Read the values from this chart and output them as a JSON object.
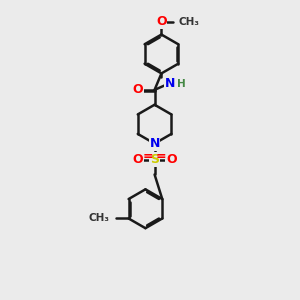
{
  "background_color": "#ebebeb",
  "bond_color": "#1a1a1a",
  "bond_width": 1.8,
  "atom_colors": {
    "O": "#ff0000",
    "N": "#0000ee",
    "S": "#cccc00",
    "C": "#1a1a1a"
  },
  "figsize": [
    3.0,
    3.0
  ],
  "dpi": 100,
  "xlim": [
    -1.5,
    5.5
  ],
  "ylim": [
    -0.5,
    12.5
  ]
}
